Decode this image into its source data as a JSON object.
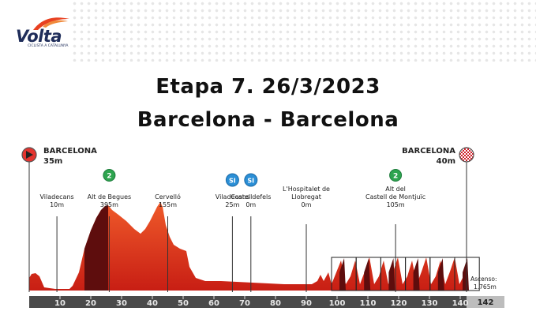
{
  "logo": {
    "name": "Volta",
    "subtitle": "CICLISTA A CATALUNYA"
  },
  "title": {
    "line1": "Etapa 7. 26/3/2023",
    "line2": "Barcelona - Barcelona"
  },
  "start": {
    "name": "BARCELONA",
    "altitude": "35m"
  },
  "finish": {
    "name": "BARCELONA",
    "altitude": "40m"
  },
  "climb_badge": "2",
  "sprint_badge": "SI",
  "points": [
    {
      "lines": [
        "Viladecans",
        "10m"
      ],
      "km": 9,
      "kind": "town"
    },
    {
      "lines": [
        "Alt de Begues",
        "395m"
      ],
      "km": 26,
      "kind": "climb",
      "badge": "2"
    },
    {
      "lines": [
        "Cervelló",
        "155m"
      ],
      "km": 45,
      "kind": "town"
    },
    {
      "lines": [
        "Viladecans",
        "25m"
      ],
      "km": 66,
      "kind": "sprint"
    },
    {
      "lines": [
        "Castelldefels",
        "0m"
      ],
      "km": 72,
      "kind": "sprint"
    },
    {
      "lines": [
        "L'Hospitalet de",
        "Llobregat",
        "0m"
      ],
      "km": 90,
      "kind": "town"
    },
    {
      "lines": [
        "Alt del",
        "Castell de Montjuïc",
        "105m"
      ],
      "km": 119,
      "kind": "climb",
      "badge": "2"
    }
  ],
  "km_ticks": [
    "10",
    "20",
    "30",
    "40",
    "50",
    "60",
    "70",
    "80",
    "90",
    "100",
    "110",
    "120",
    "130",
    "140"
  ],
  "total_km": "142",
  "ascent": {
    "label": "Ascenso:",
    "value": "1.765m"
  },
  "circuit_laps": 6,
  "colors": {
    "profile_top": "#e8401c",
    "profile_bottom": "#c81e14",
    "climb_dark": "#5e0d0d",
    "axis": "#4a4a4a",
    "sprint": "#2b8fd6",
    "climb_badge": "#2ea44f"
  }
}
